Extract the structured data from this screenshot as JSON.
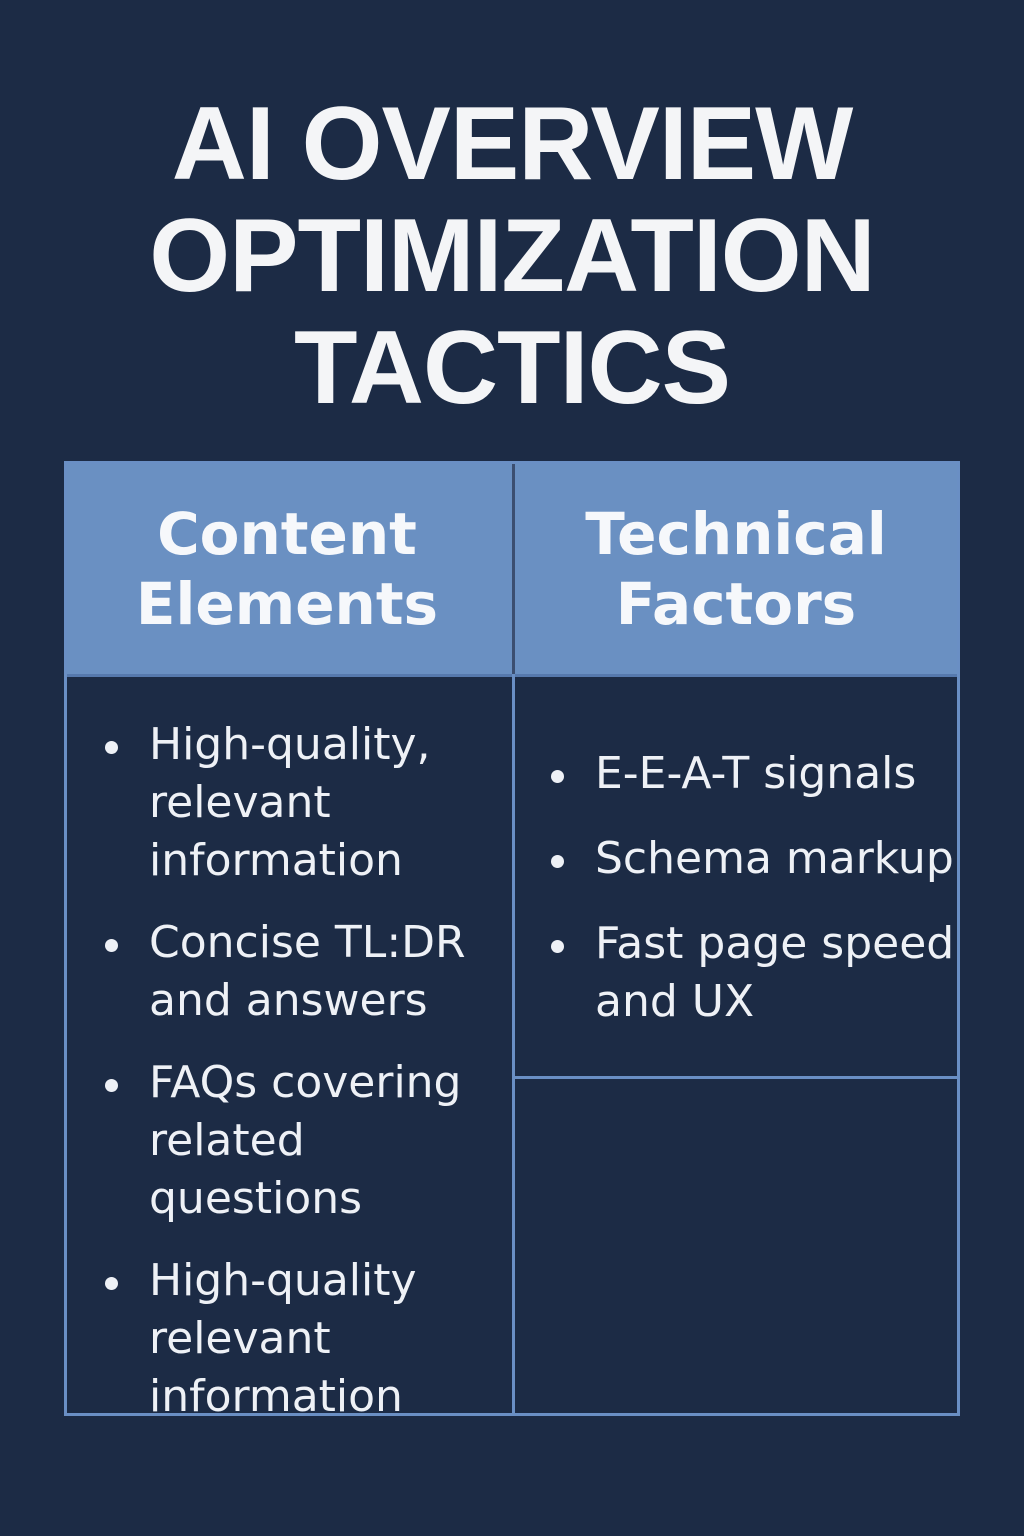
{
  "title": {
    "line1": "AI OVERVIEW",
    "line2": "OPTIMIZATION",
    "line3": "TACTICS"
  },
  "columns": [
    {
      "header_line1": "Content",
      "header_line2": "Elements",
      "items": [
        "High-quality, relevant information",
        "Concise TL:DR and answers",
        "FAQs covering related questions",
        "High-quality relevant information"
      ]
    },
    {
      "header_line1": "Technical",
      "header_line2": "Factors",
      "items": [
        "E-E-A-T signals",
        "Schema markup",
        "Fast page speed and UX"
      ]
    }
  ],
  "colors": {
    "background": "#1c2b45",
    "header_fill": "#6a90c2",
    "border": "#6a8fc4",
    "text": "#f4f5f7"
  }
}
